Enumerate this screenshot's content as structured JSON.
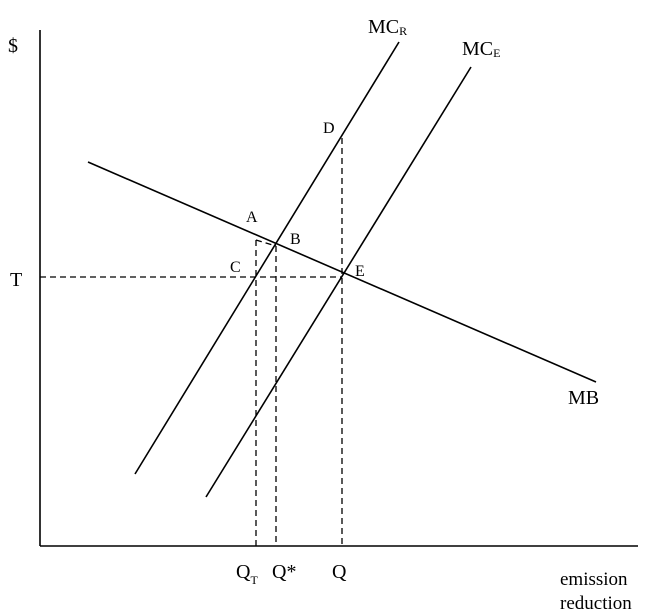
{
  "axes": {
    "y_label": "$",
    "x_label_line1": "emission",
    "x_label_line2": "reduction",
    "price_label": "T"
  },
  "curves": {
    "mc_r": {
      "main": "MC",
      "sub": "R"
    },
    "mc_e": {
      "main": "MC",
      "sub": "E"
    },
    "mb": "MB"
  },
  "points": {
    "a": "A",
    "b": "B",
    "c": "C",
    "d": "D",
    "e": "E"
  },
  "quantities": {
    "q_t": {
      "main": "Q",
      "sub": "T"
    },
    "q_star": "Q*",
    "q": "Q"
  }
}
